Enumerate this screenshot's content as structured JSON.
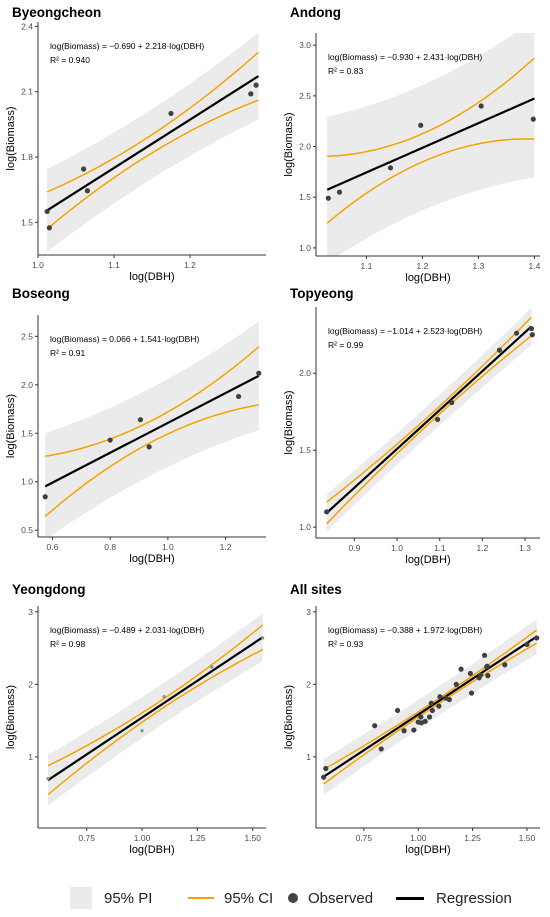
{
  "colors": {
    "pi_band": "#ebebeb",
    "ci": "#f5a300",
    "regression": "#000000",
    "observed": "#404040",
    "axis": "#333333"
  },
  "legend": {
    "pi": "95% PI",
    "ci": "95% CI",
    "observed": "Observed",
    "regression": "Regression"
  },
  "chart_data": [
    {
      "type": "scatter",
      "title": "Byeongcheon",
      "equation": "log(Biomass) = −0.690 + 2.218·log(DBH)",
      "r2": "R² = 0.940",
      "xlabel": "log(DBH)",
      "ylabel": "log(Biomass)",
      "intercept": -0.69,
      "slope": 2.218,
      "xlim": [
        1.0,
        1.3
      ],
      "ylim": [
        1.35,
        2.42
      ],
      "xticks": [
        1.0,
        1.1,
        1.2
      ],
      "xtick_labels": [
        "1.0",
        "1.1",
        "1.2"
      ],
      "yticks": [
        1.5,
        1.8,
        2.1,
        2.4
      ],
      "ytick_labels": [
        "1.5",
        "1.8",
        "2.1",
        "2.4"
      ],
      "fit_range": [
        1.012,
        1.29
      ],
      "ci_halfwidth": [
        0.085,
        0.042,
        0.11
      ],
      "pi_halfwidth": [
        0.19,
        0.16,
        0.2
      ],
      "points": [
        [
          1.012,
          1.55
        ],
        [
          1.015,
          1.475
        ],
        [
          1.06,
          1.745
        ],
        [
          1.065,
          1.645
        ],
        [
          1.175,
          2.0
        ],
        [
          1.28,
          2.09
        ],
        [
          1.287,
          2.13
        ]
      ]
    },
    {
      "type": "scatter",
      "title": "Andong",
      "equation": "log(Biomass) = −0.930 + 2.431·log(DBH)",
      "r2": "R² = 0.83",
      "xlabel": "log(DBH)",
      "ylabel": "log(Biomass)",
      "intercept": -0.93,
      "slope": 2.431,
      "xlim": [
        1.01,
        1.41
      ],
      "ylim": [
        0.92,
        3.12
      ],
      "xticks": [
        1.1,
        1.2,
        1.3,
        1.4
      ],
      "xtick_labels": [
        "1.1",
        "1.2",
        "1.3",
        "1.4"
      ],
      "yticks": [
        1.0,
        1.5,
        2.0,
        2.5,
        3.0
      ],
      "ytick_labels": [
        "1.0",
        "1.5",
        "2.0",
        "2.5",
        "3.0"
      ],
      "fit_range": [
        1.03,
        1.4
      ],
      "ci_halfwidth": [
        0.33,
        0.14,
        0.4
      ],
      "pi_halfwidth": [
        0.72,
        0.62,
        0.78
      ],
      "points": [
        [
          1.032,
          1.49
        ],
        [
          1.052,
          1.55
        ],
        [
          1.143,
          1.79
        ],
        [
          1.197,
          2.21
        ],
        [
          1.305,
          2.4
        ],
        [
          1.398,
          2.27
        ]
      ]
    },
    {
      "type": "scatter",
      "title": "Boseong",
      "equation": "log(Biomass) = 0.066 + 1.541·log(DBH)",
      "r2": "R² = 0.91",
      "xlabel": "log(DBH)",
      "ylabel": "log(Biomass)",
      "intercept": 0.066,
      "slope": 1.541,
      "xlim": [
        0.55,
        1.34
      ],
      "ylim": [
        0.43,
        2.72
      ],
      "xticks": [
        0.6,
        0.8,
        1.0,
        1.2
      ],
      "xtick_labels": [
        "0.6",
        "0.8",
        "1.0",
        "1.2"
      ],
      "yticks": [
        0.5,
        1.0,
        1.5,
        2.0,
        2.5
      ],
      "ytick_labels": [
        "0.5",
        "1.0",
        "1.5",
        "2.0",
        "2.5"
      ],
      "fit_range": [
        0.575,
        1.315
      ],
      "ci_halfwidth": [
        0.31,
        0.11,
        0.3
      ],
      "pi_halfwidth": [
        0.55,
        0.45,
        0.56
      ],
      "points": [
        [
          0.575,
          0.845
        ],
        [
          0.8,
          1.43
        ],
        [
          0.905,
          1.64
        ],
        [
          0.935,
          1.36
        ],
        [
          1.245,
          1.88
        ],
        [
          1.315,
          2.12
        ]
      ]
    },
    {
      "type": "scatter",
      "title": "Topyeong",
      "equation": "log(Biomass) = −1.014 + 2.523·log(DBH)",
      "r2": "R² = 0.99",
      "xlabel": "log(DBH)",
      "ylabel": "log(Biomass)",
      "intercept": -1.014,
      "slope": 2.523,
      "xlim": [
        0.81,
        1.335
      ],
      "ylim": [
        0.93,
        2.43
      ],
      "xticks": [
        0.9,
        1.0,
        1.1,
        1.2,
        1.3
      ],
      "xtick_labels": [
        "0.9",
        "1.0",
        "1.1",
        "1.2",
        "1.3"
      ],
      "yticks": [
        1.0,
        1.5,
        2.0
      ],
      "ytick_labels": [
        "1.0",
        "1.5",
        "2.0"
      ],
      "fit_range": [
        0.835,
        1.315
      ],
      "ci_halfwidth": [
        0.07,
        0.025,
        0.06
      ],
      "pi_halfwidth": [
        0.12,
        0.1,
        0.12
      ],
      "points": [
        [
          0.835,
          1.1
        ],
        [
          1.095,
          1.7
        ],
        [
          1.128,
          1.81
        ],
        [
          1.24,
          2.15
        ],
        [
          1.28,
          2.26
        ],
        [
          1.315,
          2.29
        ],
        [
          1.317,
          2.25
        ]
      ]
    },
    {
      "type": "scatter",
      "title": "Yeongdong",
      "equation": "log(Biomass) = −0.489 + 2.031·log(DBH)",
      "r2": "R² = 0.98",
      "xlabel": "log(DBH)",
      "ylabel": "log(Biomass)",
      "intercept": -0.489,
      "slope": 2.031,
      "xlim": [
        0.53,
        1.56
      ],
      "ylim": [
        0.02,
        3.08
      ],
      "xticks": [
        0.75,
        1.0,
        1.25,
        1.5
      ],
      "xtick_labels": [
        "0.75",
        "1.00",
        "1.25",
        "1.50"
      ],
      "yticks": [
        1,
        2,
        3
      ],
      "ytick_labels": [
        "1",
        "2",
        "3"
      ],
      "fit_range": [
        0.575,
        1.545
      ],
      "ci_halfwidth": [
        0.2,
        0.06,
        0.17
      ],
      "pi_halfwidth": [
        0.35,
        0.28,
        0.33
      ],
      "points": [
        [
          0.575,
          0.7
        ],
        [
          1.0,
          1.36
        ],
        [
          1.1,
          1.83
        ],
        [
          1.315,
          2.24
        ],
        [
          1.545,
          2.64
        ]
      ]
    },
    {
      "type": "scatter",
      "title": "All sites",
      "equation": "log(Biomass) = −0.388 + 1.972·log(DBH)",
      "r2": "R² = 0.93",
      "xlabel": "log(DBH)",
      "ylabel": "log(Biomass)",
      "intercept": -0.388,
      "slope": 1.972,
      "xlim": [
        0.53,
        1.56
      ],
      "ylim": [
        0.02,
        3.08
      ],
      "xticks": [
        0.75,
        1.0,
        1.25,
        1.5
      ],
      "xtick_labels": [
        "0.75",
        "1.00",
        "1.25",
        "1.50"
      ],
      "yticks": [
        1,
        2,
        3
      ],
      "ytick_labels": [
        "1",
        "2",
        "3"
      ],
      "fit_range": [
        0.565,
        1.545
      ],
      "ci_halfwidth": [
        0.1,
        0.035,
        0.09
      ],
      "pi_halfwidth": [
        0.25,
        0.2,
        0.24
      ],
      "points": [
        [
          0.575,
          0.84
        ],
        [
          0.565,
          0.72
        ],
        [
          0.8,
          1.43
        ],
        [
          0.83,
          1.11
        ],
        [
          0.905,
          1.64
        ],
        [
          0.935,
          1.36
        ],
        [
          0.98,
          1.37
        ],
        [
          1.0,
          1.48
        ],
        [
          1.012,
          1.55
        ],
        [
          1.015,
          1.47
        ],
        [
          1.032,
          1.49
        ],
        [
          1.052,
          1.55
        ],
        [
          1.06,
          1.74
        ],
        [
          1.065,
          1.64
        ],
        [
          1.095,
          1.7
        ],
        [
          1.1,
          1.83
        ],
        [
          1.128,
          1.81
        ],
        [
          1.143,
          1.79
        ],
        [
          1.175,
          2.0
        ],
        [
          1.197,
          2.21
        ],
        [
          1.24,
          2.15
        ],
        [
          1.245,
          1.88
        ],
        [
          1.28,
          2.09
        ],
        [
          1.287,
          2.13
        ],
        [
          1.305,
          2.4
        ],
        [
          1.315,
          2.24
        ],
        [
          1.317,
          2.25
        ],
        [
          1.32,
          2.12
        ],
        [
          1.398,
          2.27
        ],
        [
          1.5,
          2.55
        ],
        [
          1.545,
          2.64
        ]
      ]
    }
  ]
}
